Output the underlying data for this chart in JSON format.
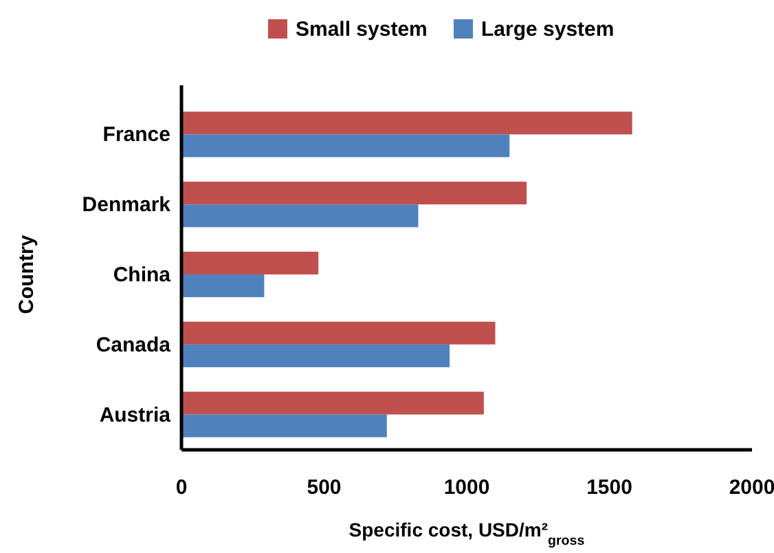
{
  "chart_data": {
    "type": "bar",
    "orientation": "horizontal",
    "xlabel": "Specific cost, USD/m²$_{gross}$",
    "ylabel": "Country",
    "categories": [
      "France",
      "Denmark",
      "China",
      "Canada",
      "Austria"
    ],
    "series": [
      {
        "name": "Small system",
        "color": "#c0504d",
        "values": [
          1580,
          1210,
          480,
          1100,
          1060
        ]
      },
      {
        "name": "Large system",
        "color": "#4f81bd",
        "values": [
          1150,
          830,
          290,
          940,
          720
        ]
      }
    ],
    "xlim": [
      0,
      2000
    ],
    "xticks": [
      0,
      500,
      1000,
      1500,
      2000
    ],
    "legend": "top",
    "grid": false
  }
}
